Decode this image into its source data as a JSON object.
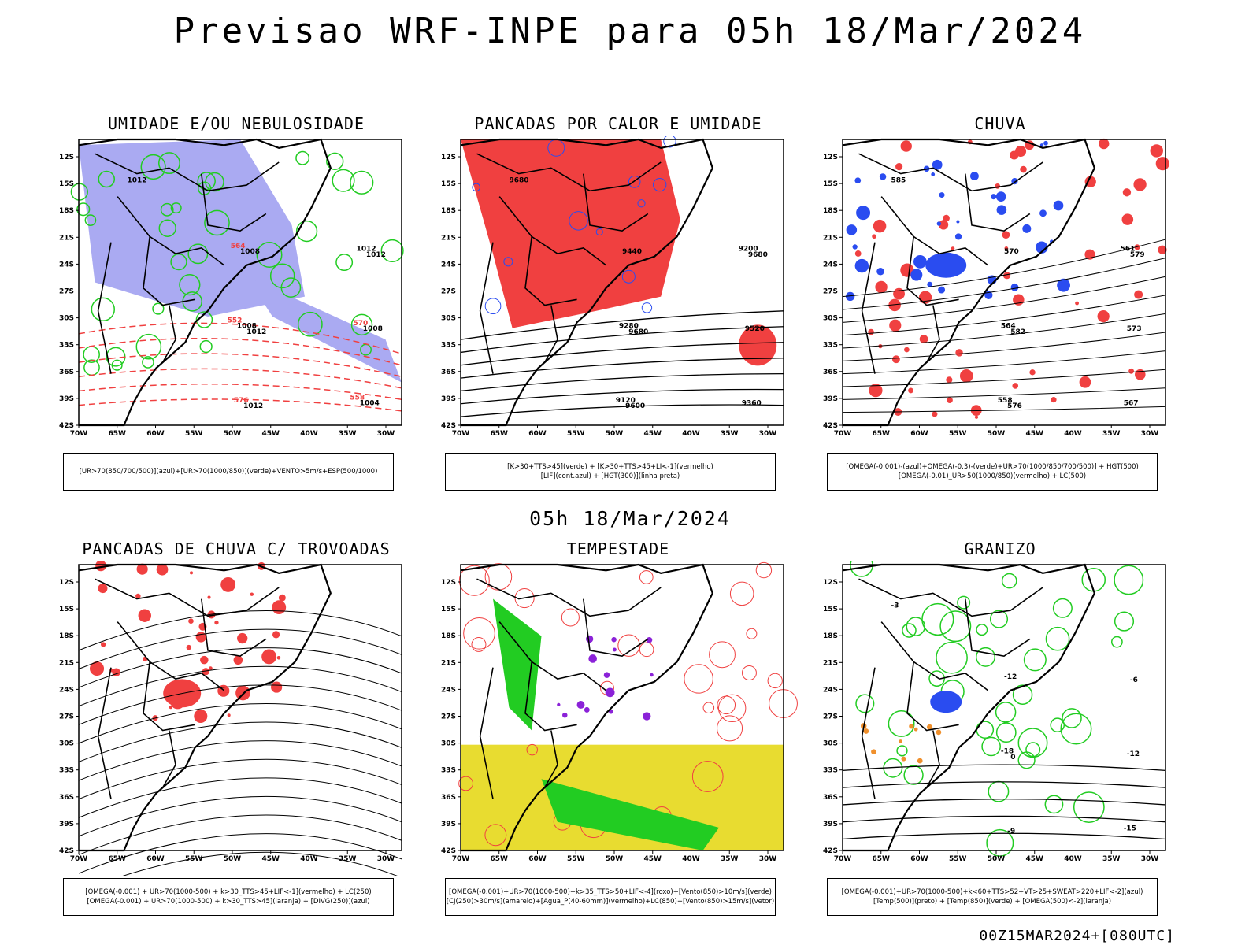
{
  "main_title": "Previsao WRF-INPE  para 05h 18/Mar/2024",
  "mid_date": "05h 18/Mar/2024",
  "footer": "00Z15MAR2024+[080UTC]",
  "axes": {
    "lat_labels": [
      "12S",
      "15S",
      "18S",
      "21S",
      "24S",
      "27S",
      "30S",
      "33S",
      "36S",
      "39S",
      "42S"
    ],
    "lon_labels": [
      "70W",
      "65W",
      "60W",
      "55W",
      "50W",
      "45W",
      "40W",
      "35W",
      "30W"
    ]
  },
  "colors": {
    "red": "#f04040",
    "green": "#22cc22",
    "blue": "#2a4cf0",
    "lavender": "#aaaaf2",
    "yellow": "#e8dc30",
    "purple": "#8b22d8",
    "orange": "#f0902c",
    "black": "#000000"
  },
  "panels": [
    {
      "title": "UMIDADE E/OU NEBULOSIDADE",
      "legend": [
        "[UR>70(850/700/500)](azul)+[UR>70(1000/850)](verde)+VENTO>5m/s+ESP(500/1000)"
      ],
      "contour_labels": [
        "1012",
        "1012",
        "1012",
        "1012",
        "1008",
        "1008",
        "1004",
        "1008",
        "1012",
        "576",
        "570",
        "564",
        "558",
        "552"
      ]
    },
    {
      "title": "PANCADAS POR CALOR E UMIDADE",
      "legend": [
        "[K>30+TTS>45](verde) + [K>30+TTS>45+LI<-1](vermelho)",
        "[LIF](cont.azul) + [HGT(300)](linha preta)"
      ],
      "contour_labels": [
        "9680",
        "9680",
        "9680",
        "9600",
        "9520",
        "9440",
        "9360",
        "9280",
        "9200",
        "9120"
      ]
    },
    {
      "title": "CHUVA",
      "legend": [
        "[OMEGA(-0.001)-(azul)+OMEGA(-0.3)-(verde)+UR>70(1000/850/700/500)] + HGT(500)",
        "[OMEGA(-0.01)_UR>50(1000/850)(vermelho) + LC(500)"
      ],
      "contour_labels": [
        "585",
        "582",
        "579",
        "576",
        "573",
        "570",
        "567",
        "564",
        "561",
        "558"
      ]
    },
    {
      "title": "PANCADAS DE CHUVA C/ TROVOADAS",
      "legend": [
        "[OMEGA(-0.001) + UR>70(1000-500) + k>30_TTS>45+LIF<-1](vermelho) + LC(250)",
        "[OMEGA(-0.001) + UR>70(1000-500) + k>30_TTS>45](laranja) + [DIVG(250)](azul)"
      ],
      "contour_labels": []
    },
    {
      "title": "TEMPESTADE",
      "legend": [
        "[OMEGA(-0.001)+UR>70(1000-500)+k>35_TTS>50+LIF<-4](roxo)+[Vento(850)>10m/s](verde)",
        "[CJ(250)>30m/s](amarelo)+[Agua_P(40-60mm)](vermelho)+LC(850)+[Vento(850)>15m/s](vetor)"
      ],
      "contour_labels": []
    },
    {
      "title": "GRANIZO",
      "legend": [
        "[OMEGA(-0.001)+UR>70(1000-500)+k<60+TTS>52+VT>25+SWEAT>220+LIF<-2](azul)",
        "[Temp(500)](preto) + [Temp(850)](verde) + [OMEGA(500)<-2](laranja)"
      ],
      "contour_labels": [
        "-3",
        "0",
        "-6",
        "-9",
        "-12",
        "-12",
        "-15",
        "-18"
      ]
    }
  ]
}
